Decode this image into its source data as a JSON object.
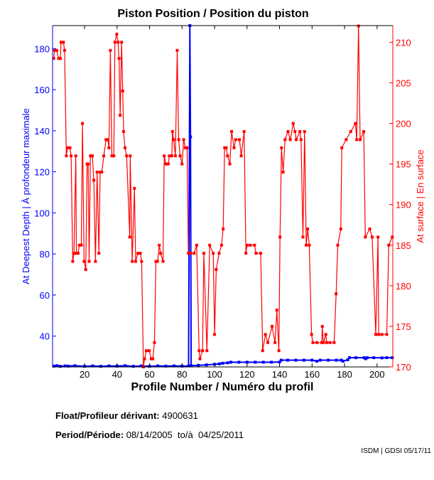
{
  "chart_data": {
    "type": "line",
    "title": "Piston Position / Position du piston",
    "xlabel": "Profile Number / Numéro du profil",
    "ylabel_left": "At Deepest Depth | À profondeur maximale",
    "ylabel_right": "At surface | En surface",
    "xlim": [
      0.3,
      209.7
    ],
    "ylim_left": [
      25,
      191.2
    ],
    "ylim_right": [
      170,
      212.05
    ],
    "xticks": [
      20,
      40,
      60,
      80,
      100,
      120,
      140,
      160,
      180,
      200
    ],
    "yticks_left": [
      40,
      60,
      80,
      100,
      120,
      140,
      160,
      180
    ],
    "yticks_right": [
      170,
      175,
      180,
      185,
      190,
      195,
      200,
      205,
      210
    ],
    "grid": false,
    "colors": {
      "left": "#0000ff",
      "right": "#ff0000",
      "frame": "#000000"
    },
    "series": [
      {
        "name": "At Deepest Depth",
        "axis": "left",
        "color": "#0000ff",
        "points": [
          [
            1,
            25.4
          ],
          [
            3,
            25.6
          ],
          [
            5,
            25.3
          ],
          [
            8,
            25.5
          ],
          [
            10,
            25.4
          ],
          [
            14,
            25.6
          ],
          [
            20,
            25.3
          ],
          [
            25,
            25.5
          ],
          [
            30,
            25.3
          ],
          [
            35,
            25.5
          ],
          [
            40,
            25.4
          ],
          [
            45,
            25.6
          ],
          [
            50,
            25.3
          ],
          [
            55,
            25.5
          ],
          [
            60,
            25.3
          ],
          [
            65,
            25.5
          ],
          [
            70,
            25.4
          ],
          [
            75,
            25.5
          ],
          [
            80,
            25.4
          ],
          [
            84,
            25.5
          ],
          [
            84.8,
            191.2
          ],
          [
            85.2,
            137
          ],
          [
            85.6,
            25.6
          ],
          [
            90,
            25.8
          ],
          [
            95,
            26
          ],
          [
            100,
            26.3
          ],
          [
            103,
            26.5
          ],
          [
            105,
            26.8
          ],
          [
            108,
            27
          ],
          [
            110,
            27.3
          ],
          [
            115,
            27.3
          ],
          [
            120,
            27.3
          ],
          [
            125,
            27.3
          ],
          [
            130,
            27.3
          ],
          [
            135,
            27.3
          ],
          [
            140,
            27.4
          ],
          [
            141,
            28.3
          ],
          [
            145,
            28.3
          ],
          [
            150,
            28.3
          ],
          [
            155,
            28.3
          ],
          [
            160,
            28.3
          ],
          [
            163,
            27.8
          ],
          [
            165,
            28.3
          ],
          [
            170,
            28.3
          ],
          [
            175,
            28.3
          ],
          [
            178,
            28.3
          ],
          [
            179,
            27.8
          ],
          [
            182,
            28.5
          ],
          [
            183,
            29.5
          ],
          [
            187,
            29.5
          ],
          [
            192,
            29.5
          ],
          [
            193,
            29
          ],
          [
            194,
            29.5
          ],
          [
            198,
            29.5
          ],
          [
            203,
            29.4
          ],
          [
            206,
            29.5
          ],
          [
            209.4,
            29.5
          ]
        ]
      },
      {
        "name": "At surface",
        "axis": "right",
        "color": "#ff0000",
        "points": [
          [
            1,
            208
          ],
          [
            1.5,
            209
          ],
          [
            2.9,
            209
          ],
          [
            4,
            208
          ],
          [
            5.1,
            208
          ],
          [
            5.5,
            210
          ],
          [
            7,
            210
          ],
          [
            7.7,
            209
          ],
          [
            8.8,
            196
          ],
          [
            9.5,
            197
          ],
          [
            11,
            197
          ],
          [
            11.7,
            196
          ],
          [
            12.7,
            183
          ],
          [
            13.5,
            184
          ],
          [
            14.6,
            196
          ],
          [
            15,
            184
          ],
          [
            16,
            184
          ],
          [
            16.8,
            185
          ],
          [
            18,
            185
          ],
          [
            18.7,
            200
          ],
          [
            19.7,
            183
          ],
          [
            20.7,
            182
          ],
          [
            21.6,
            195
          ],
          [
            22.2,
            195
          ],
          [
            22.8,
            183
          ],
          [
            23.6,
            196
          ],
          [
            24.8,
            196
          ],
          [
            25.7,
            193
          ],
          [
            26.7,
            183
          ],
          [
            27.7,
            194
          ],
          [
            28.8,
            184
          ],
          [
            29.6,
            194
          ],
          [
            30.6,
            194
          ],
          [
            31.8,
            196
          ],
          [
            33.2,
            198
          ],
          [
            34.3,
            198
          ],
          [
            35,
            197
          ],
          [
            35.9,
            209
          ],
          [
            36.8,
            196
          ],
          [
            38,
            196
          ],
          [
            38.7,
            210
          ],
          [
            39.8,
            211
          ],
          [
            40.6,
            210
          ],
          [
            41.2,
            208
          ],
          [
            41.9,
            201
          ],
          [
            42.8,
            210
          ],
          [
            43.5,
            204
          ],
          [
            44,
            199
          ],
          [
            44.9,
            197
          ],
          [
            45.9,
            196
          ],
          [
            47.8,
            186
          ],
          [
            48.1,
            196
          ],
          [
            49.3,
            183
          ],
          [
            50.7,
            192
          ],
          [
            51.4,
            183
          ],
          [
            52.8,
            184
          ],
          [
            54.3,
            184
          ],
          [
            55.1,
            183
          ],
          [
            56.2,
            170
          ],
          [
            56.9,
            171
          ],
          [
            58,
            172
          ],
          [
            59.8,
            172
          ],
          [
            61,
            171
          ],
          [
            62,
            171
          ],
          [
            63,
            173
          ],
          [
            63.9,
            183
          ],
          [
            64.9,
            183
          ],
          [
            66,
            185
          ],
          [
            66.8,
            184
          ],
          [
            68.3,
            183
          ],
          [
            69,
            196
          ],
          [
            70,
            195
          ],
          [
            71.5,
            195
          ],
          [
            72.2,
            196
          ],
          [
            73.7,
            196
          ],
          [
            74.1,
            199
          ],
          [
            74.8,
            198
          ],
          [
            75.9,
            196
          ],
          [
            77,
            209
          ],
          [
            77.9,
            198
          ],
          [
            78.8,
            196
          ],
          [
            80,
            195
          ],
          [
            81,
            198
          ],
          [
            82,
            197
          ],
          [
            83.1,
            197
          ],
          [
            83.9,
            184
          ],
          [
            85.2,
            184
          ],
          [
            87.4,
            184
          ],
          [
            89,
            185
          ],
          [
            90.5,
            172
          ],
          [
            91,
            171
          ],
          [
            92.6,
            172
          ],
          [
            93.4,
            184
          ],
          [
            95.3,
            172
          ],
          [
            97,
            185
          ],
          [
            99.2,
            184
          ],
          [
            100,
            174
          ],
          [
            101,
            182
          ],
          [
            102.8,
            184
          ],
          [
            104.3,
            185
          ],
          [
            105.3,
            187
          ],
          [
            106.2,
            197
          ],
          [
            107.2,
            197
          ],
          [
            108,
            196
          ],
          [
            109.4,
            195
          ],
          [
            110.5,
            199
          ],
          [
            112,
            197
          ],
          [
            113,
            198
          ],
          [
            115.3,
            198
          ],
          [
            116.4,
            196
          ],
          [
            118.2,
            199
          ],
          [
            119.3,
            184
          ],
          [
            120,
            185
          ],
          [
            122,
            185
          ],
          [
            124.6,
            185
          ],
          [
            125.5,
            184
          ],
          [
            128.4,
            184
          ],
          [
            129.6,
            172
          ],
          [
            131.3,
            174
          ],
          [
            132.8,
            173
          ],
          [
            135.4,
            175
          ],
          [
            137.2,
            173
          ],
          [
            138.3,
            177
          ],
          [
            139.6,
            172
          ],
          [
            140.3,
            186
          ],
          [
            141.2,
            197
          ],
          [
            142.2,
            194
          ],
          [
            143.4,
            198
          ],
          [
            145.2,
            199
          ],
          [
            146.6,
            198
          ],
          [
            148.4,
            200
          ],
          [
            149.5,
            199
          ],
          [
            150.3,
            198
          ],
          [
            152.5,
            199
          ],
          [
            153.2,
            198
          ],
          [
            154.4,
            186
          ],
          [
            155.4,
            199
          ],
          [
            156.4,
            185
          ],
          [
            157.3,
            187
          ],
          [
            158.3,
            185
          ],
          [
            159.7,
            174
          ],
          [
            160.5,
            173
          ],
          [
            163,
            173
          ],
          [
            166,
            173
          ],
          [
            166.3,
            175
          ],
          [
            167,
            173
          ],
          [
            168.5,
            174
          ],
          [
            169,
            173
          ],
          [
            171,
            173
          ],
          [
            173.6,
            173
          ],
          [
            174.8,
            179
          ],
          [
            175.8,
            185
          ],
          [
            177.7,
            187
          ],
          [
            178.3,
            197
          ],
          [
            181,
            198
          ],
          [
            183.8,
            199
          ],
          [
            186.7,
            200
          ],
          [
            187.5,
            198
          ],
          [
            188.6,
            212
          ],
          [
            189.6,
            198
          ],
          [
            191.8,
            199
          ],
          [
            192.8,
            186
          ],
          [
            195.5,
            187
          ],
          [
            197,
            186
          ],
          [
            199.2,
            174
          ],
          [
            200.6,
            186
          ],
          [
            201,
            174
          ],
          [
            203,
            174
          ],
          [
            206,
            174
          ],
          [
            207.2,
            185
          ],
          [
            209.4,
            186
          ]
        ]
      }
    ]
  },
  "info": {
    "float_label": "Float/Profileur dérivant:",
    "float_value": "4900631",
    "period_label": "Period/Période:",
    "period_start": "08/14/2005",
    "period_sep": "to/à",
    "period_end": "04/25/2011",
    "credit": "ISDM | GDSI 05/17/11"
  }
}
